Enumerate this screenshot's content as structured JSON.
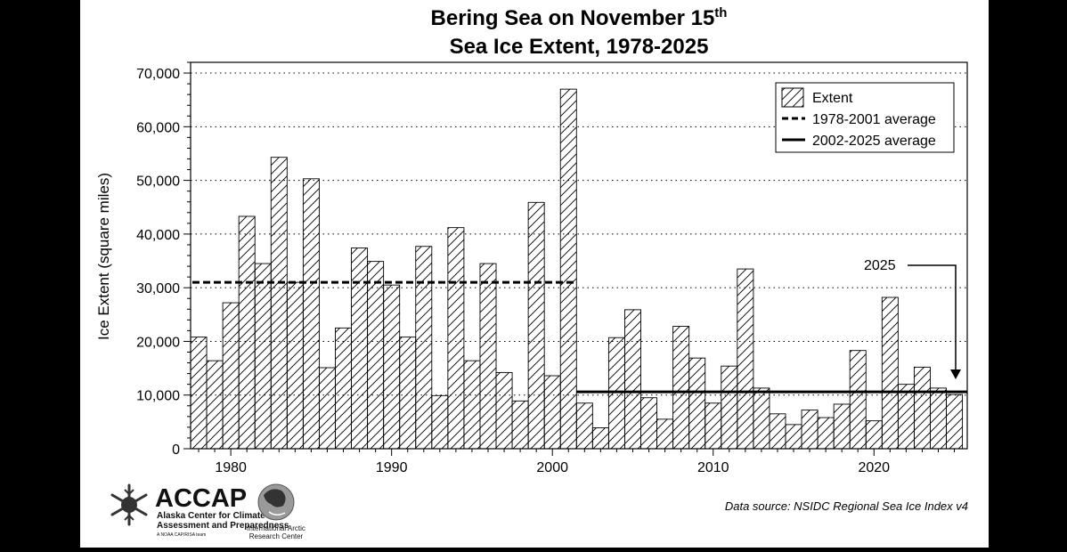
{
  "chart_data": {
    "type": "bar",
    "title_line1": "Bering Sea on November 15",
    "title_sup": "th",
    "title_line2": "Sea Ice Extent, 1978-2025",
    "ylabel": "Ice Extent (square miles)",
    "xlabel": "",
    "ylim": [
      0,
      72000
    ],
    "xlim": [
      1977.5,
      2025.8
    ],
    "y_ticks": [
      0,
      10000,
      20000,
      30000,
      40000,
      50000,
      60000,
      70000
    ],
    "y_tick_labels": [
      "0",
      "10,000",
      "20,000",
      "30,000",
      "40,000",
      "50,000",
      "60,000",
      "70,000"
    ],
    "x_ticks": [
      1980,
      1990,
      2000,
      2010,
      2020
    ],
    "x_tick_labels": [
      "1980",
      "1990",
      "2000",
      "2010",
      "2020"
    ],
    "grid": "horizontal dotted",
    "legend_position": "top-right",
    "series": [
      {
        "name": "Extent",
        "years": [
          1978,
          1979,
          1980,
          1981,
          1982,
          1983,
          1984,
          1985,
          1986,
          1987,
          1988,
          1989,
          1990,
          1991,
          1992,
          1993,
          1994,
          1995,
          1996,
          1997,
          1998,
          1999,
          2000,
          2001,
          2002,
          2003,
          2004,
          2005,
          2006,
          2007,
          2008,
          2009,
          2010,
          2011,
          2012,
          2013,
          2014,
          2015,
          2016,
          2017,
          2018,
          2019,
          2020,
          2021,
          2022,
          2023,
          2024,
          2025
        ],
        "values": [
          20800,
          16400,
          27200,
          43300,
          34500,
          54300,
          31000,
          50300,
          15100,
          22500,
          37400,
          34900,
          30500,
          20800,
          37700,
          9900,
          41200,
          16400,
          34500,
          14200,
          8900,
          45900,
          13600,
          67000,
          8500,
          3900,
          20700,
          25900,
          9500,
          5500,
          22800,
          16900,
          8500,
          15400,
          33500,
          11300,
          6500,
          4500,
          7200,
          5800,
          8300,
          18300,
          5200,
          28200,
          12000,
          15200,
          11300,
          10100
        ]
      },
      {
        "name": "1978-2001 average",
        "value": 31000,
        "years": [
          1977.5,
          2001.5
        ]
      },
      {
        "name": "2002-2025 average",
        "value": 10600,
        "years": [
          2001.5,
          2025.8
        ]
      }
    ],
    "annotation": {
      "text": "2025",
      "year": 2025
    }
  },
  "source_note": "Data source: NSIDC Regional Sea Ice Index v4",
  "logos": {
    "accap_name": "ACCAP",
    "accap_line1": "Alaska Center for Climate",
    "accap_line2": "Assessment and Preparedness",
    "accap_line3": "A NOAA CAP/RISA team",
    "iarc_line1": "International Arctic",
    "iarc_line2": "Research Center"
  },
  "colors": {
    "bar_fill": "#ffffff",
    "hatch": "#000000",
    "frame": "#000000",
    "background": "#000000"
  }
}
